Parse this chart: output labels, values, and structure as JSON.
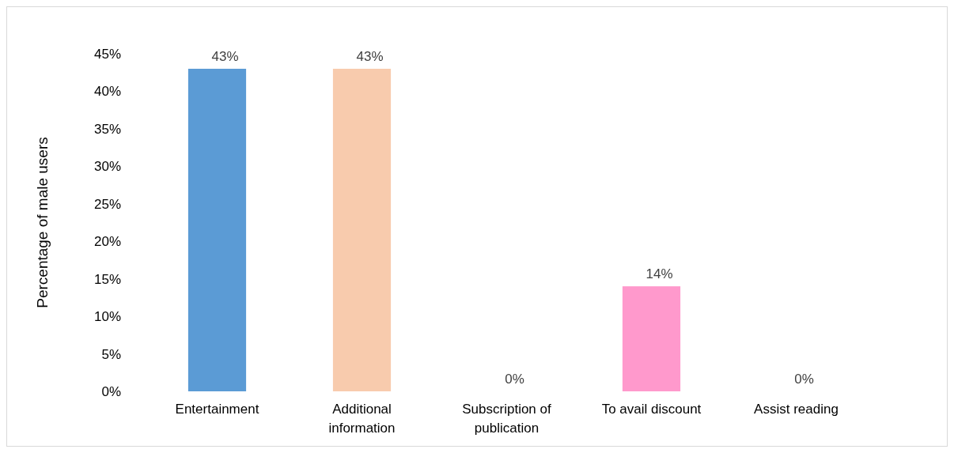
{
  "chart_data": {
    "type": "bar",
    "ylabel": "Percentage of male users",
    "categories": [
      "Entertainment",
      "Additional information",
      "Subscription of publication",
      "To avail discount",
      "Assist reading"
    ],
    "values": [
      43,
      43,
      0,
      14,
      0
    ],
    "colors": [
      "#5b9bd5",
      "#f8cbad",
      "#c9b574",
      "#ff99cc",
      "#78a55a"
    ],
    "value_labels": [
      "43%",
      "43%",
      "0%",
      "14%",
      "0%"
    ],
    "ylim": [
      0,
      45
    ],
    "yticks": [
      {
        "value": 0,
        "label": "0%"
      },
      {
        "value": 5,
        "label": "5%"
      },
      {
        "value": 10,
        "label": "10%"
      },
      {
        "value": 15,
        "label": "15%"
      },
      {
        "value": 20,
        "label": "20%"
      },
      {
        "value": 25,
        "label": "25%"
      },
      {
        "value": 30,
        "label": "30%"
      },
      {
        "value": 35,
        "label": "35%"
      },
      {
        "value": 40,
        "label": "40%"
      },
      {
        "value": 45,
        "label": "45%"
      }
    ],
    "grid": false
  }
}
